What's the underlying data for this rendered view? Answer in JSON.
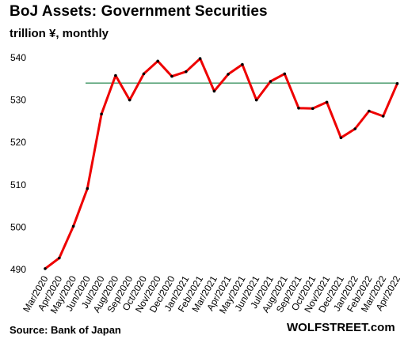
{
  "chart_data": {
    "type": "line",
    "title": "BoJ Assets: Government Securities",
    "subtitle": "trillion ¥, monthly",
    "categories": [
      "Mar/2020",
      "Apr/2020",
      "May/2020",
      "Jun/2020",
      "Jul/2020",
      "Aug/2020",
      "Sep/2020",
      "Oct/2020",
      "Nov/2020",
      "Dec/2020",
      "Jan/2021",
      "Feb/2021",
      "Mar/2021",
      "Apr/2021",
      "May/2021",
      "Jun/2021",
      "Jul/2021",
      "Aug/2021",
      "Sep/2021",
      "Oct/2021",
      "Nov/2021",
      "Dec/2021",
      "Jan/2022",
      "Feb/2022",
      "Mar/2022",
      "Apr/2022"
    ],
    "series": [
      {
        "values": [
          490.2,
          492.7,
          500.2,
          509.1,
          526.7,
          535.8,
          530.0,
          536.2,
          539.2,
          535.6,
          536.7,
          539.8,
          532.1,
          536.1,
          538.4,
          530.0,
          534.4,
          536.2,
          528.1,
          528.0,
          529.5,
          521.1,
          523.2,
          527.4,
          526.2,
          533.9
        ],
        "color": "#ee0000"
      }
    ],
    "reference_line": {
      "value": 534,
      "color": "#2e8b57"
    },
    "ylim": [
      490,
      540
    ],
    "yticks": [
      490,
      500,
      510,
      520,
      530,
      540
    ],
    "grid": false,
    "source": "Source: Bank of Japan",
    "brand": "WOLFSTREET.com"
  }
}
